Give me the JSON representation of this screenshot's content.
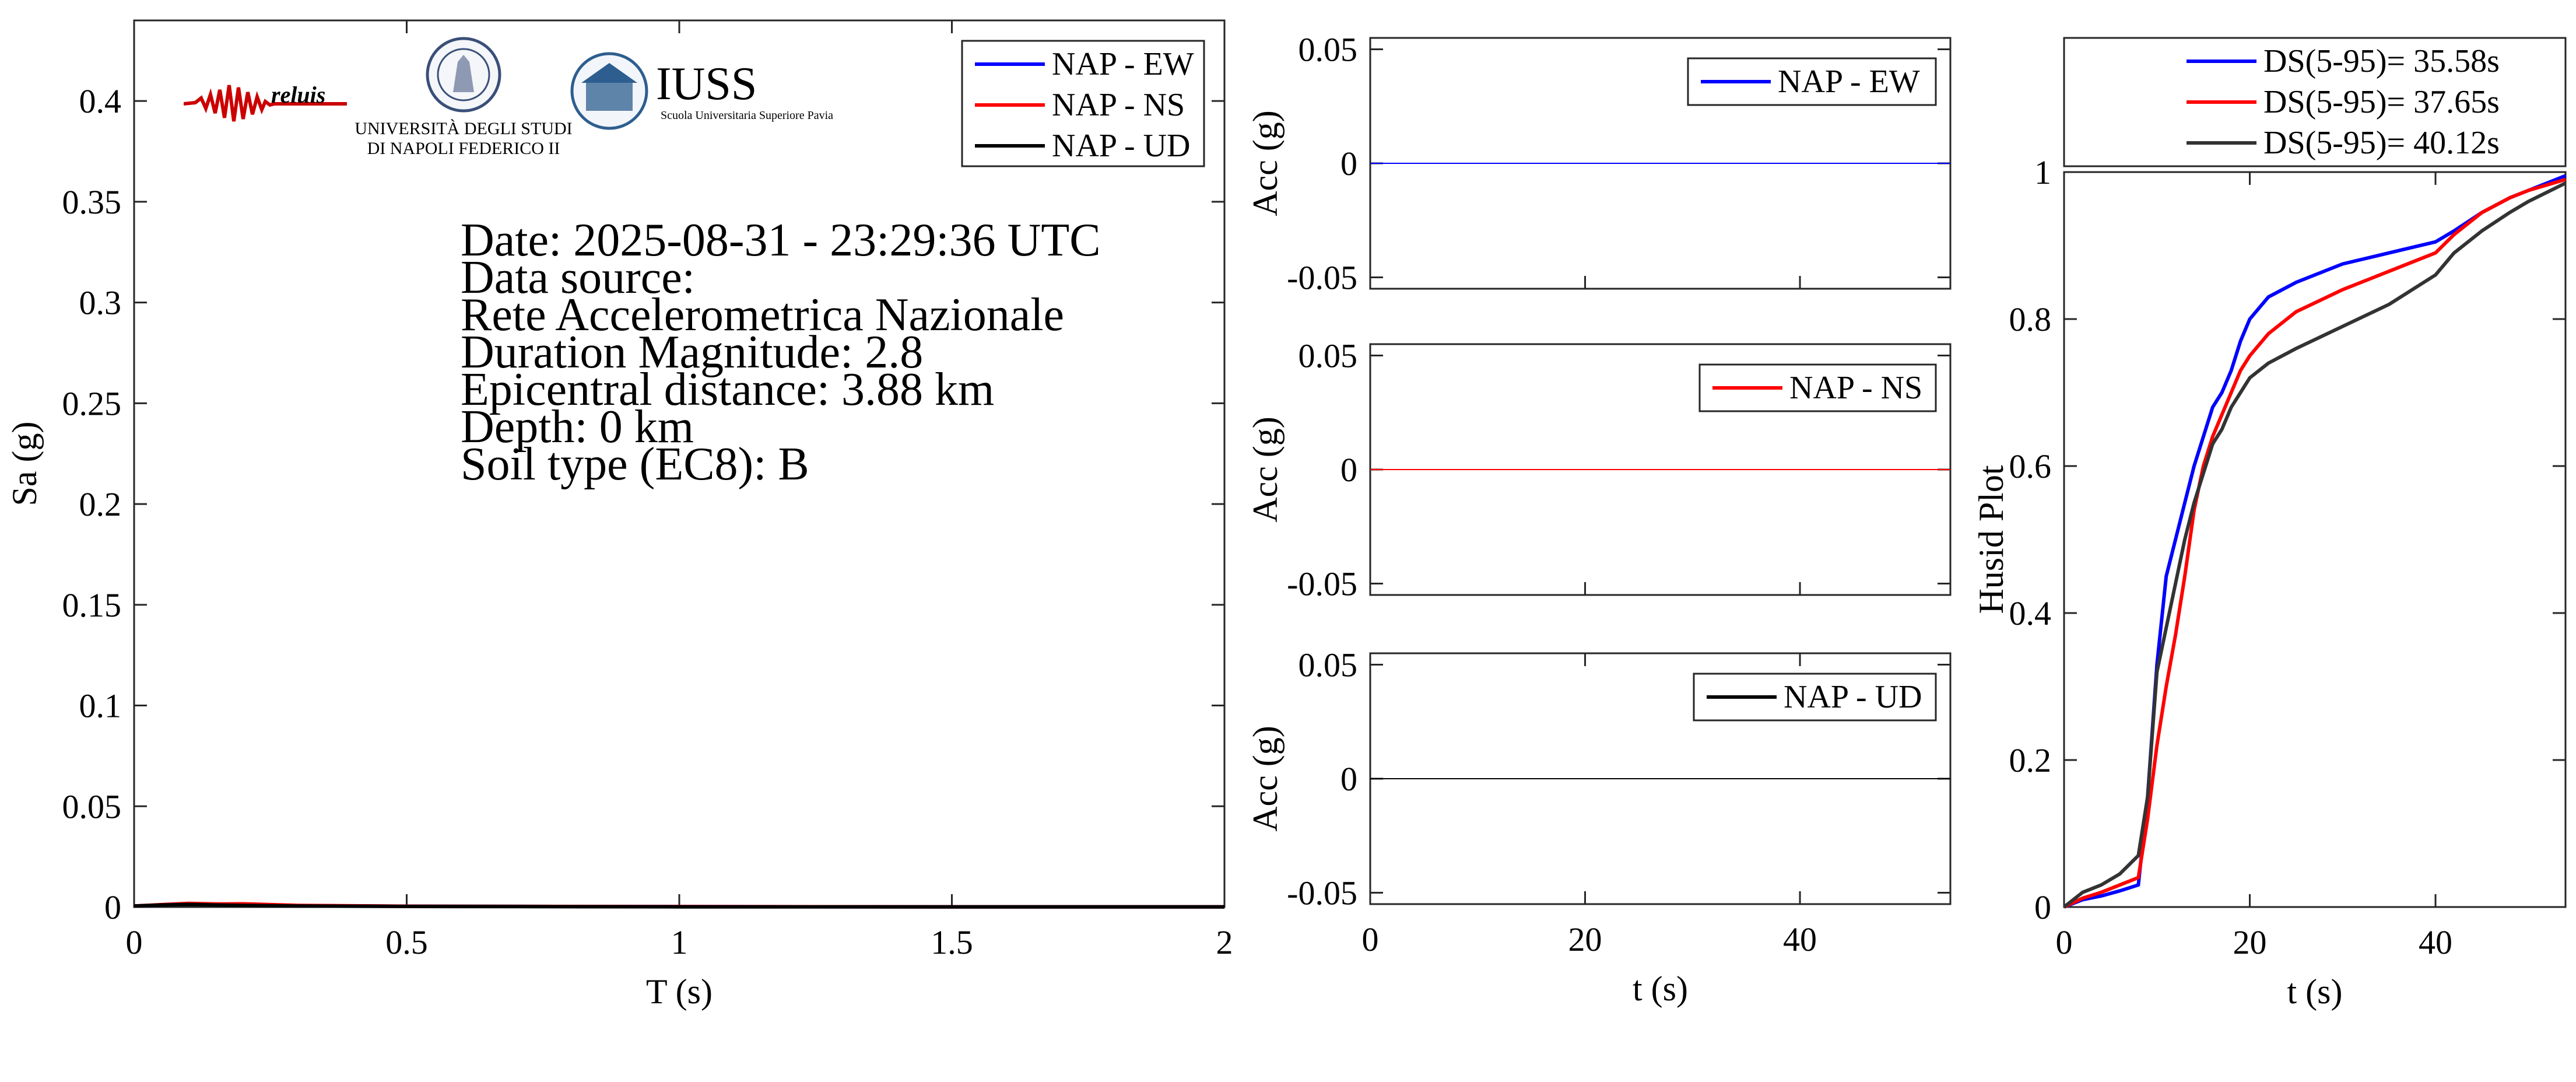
{
  "figure": {
    "info": {
      "date": "Date: 2025-08-31 - 23:29:36 UTC",
      "data_source_label": "Data source:",
      "data_source": "Rete Accelerometrica Nazionale",
      "magnitude": "Duration Magnitude: 2.8",
      "distance": "Epicentral distance: 3.88 km",
      "depth": "Depth: 0 km",
      "soil": "Soil type (EC8): B"
    },
    "logos": {
      "reluis": "reluis",
      "unina_line1": "UNIVERSITÀ DEGLI STUDI",
      "unina_line2": "DI NAPOLI FEDERICO II",
      "iuss_title": "IUSS",
      "iuss_subtitle": "Scuola Universitaria Superiore Pavia"
    },
    "colors": {
      "ew": "#0000ff",
      "ns": "#ff0000",
      "ud": "#000000",
      "ud_husid": "#333333"
    }
  },
  "chart_data": [
    {
      "type": "line",
      "id": "spectrum",
      "xlabel": "T (s)",
      "ylabel": "Sa (g)",
      "xlim": [
        0,
        2
      ],
      "ylim": [
        0,
        0.44
      ],
      "xticks": [
        0,
        0.5,
        1,
        1.5,
        2
      ],
      "xticklabels": [
        "0",
        "0.5",
        "1",
        "1.5",
        "2"
      ],
      "yticks": [
        0,
        0.05,
        0.1,
        0.15,
        0.2,
        0.25,
        0.3,
        0.35,
        0.4
      ],
      "yticklabels": [
        "0",
        "0.05",
        "0.1",
        "0.15",
        "0.2",
        "0.25",
        "0.3",
        "0.35",
        "0.4"
      ],
      "legend_position": "top-right",
      "series": [
        {
          "name": "NAP - EW",
          "color": "#0000ff",
          "x": [
            0,
            0.05,
            0.1,
            0.15,
            0.2,
            0.3,
            0.5,
            1.0,
            1.5,
            2.0
          ],
          "y": [
            0.0005,
            0.001,
            0.0015,
            0.0012,
            0.001,
            0.0007,
            0.0004,
            0.0002,
            0.0001,
            0.0001
          ]
        },
        {
          "name": "NAP - NS",
          "color": "#ff0000",
          "x": [
            0,
            0.05,
            0.1,
            0.15,
            0.2,
            0.3,
            0.5,
            1.0,
            1.5,
            2.0
          ],
          "y": [
            0.0005,
            0.0012,
            0.0018,
            0.0015,
            0.0016,
            0.0008,
            0.0004,
            0.0002,
            0.0001,
            0.0001
          ]
        },
        {
          "name": "NAP - UD",
          "color": "#000000",
          "x": [
            0,
            0.05,
            0.1,
            0.15,
            0.2,
            0.3,
            0.5,
            1.0,
            1.5,
            2.0
          ],
          "y": [
            0.0005,
            0.001,
            0.0013,
            0.001,
            0.0008,
            0.0005,
            0.0003,
            0.0001,
            0.0001,
            0.0001
          ]
        }
      ]
    },
    {
      "type": "line",
      "id": "acc-ew",
      "xlabel": "",
      "ylabel": "Acc (g)",
      "xlim": [
        0,
        54
      ],
      "ylim": [
        -0.055,
        0.055
      ],
      "yticks": [
        -0.05,
        0,
        0.05
      ],
      "yticklabels": [
        "-0.05",
        "0",
        "0.05"
      ],
      "legend_position": "top-right",
      "series": [
        {
          "name": "NAP - EW",
          "color": "#0000ff",
          "x": [
            0,
            54
          ],
          "y": [
            0,
            0
          ]
        }
      ]
    },
    {
      "type": "line",
      "id": "acc-ns",
      "xlabel": "",
      "ylabel": "Acc (g)",
      "xlim": [
        0,
        54
      ],
      "ylim": [
        -0.055,
        0.055
      ],
      "yticks": [
        -0.05,
        0,
        0.05
      ],
      "yticklabels": [
        "-0.05",
        "0",
        "0.05"
      ],
      "legend_position": "top-right",
      "series": [
        {
          "name": "NAP - NS",
          "color": "#ff0000",
          "x": [
            0,
            54
          ],
          "y": [
            0,
            0
          ]
        }
      ]
    },
    {
      "type": "line",
      "id": "acc-ud",
      "xlabel": "t (s)",
      "ylabel": "Acc (g)",
      "xlim": [
        0,
        54
      ],
      "ylim": [
        -0.055,
        0.055
      ],
      "xticks": [
        0,
        20,
        40
      ],
      "xticklabels": [
        "0",
        "20",
        "40"
      ],
      "yticks": [
        -0.05,
        0,
        0.05
      ],
      "yticklabels": [
        "-0.05",
        "0",
        "0.05"
      ],
      "legend_position": "top-right",
      "series": [
        {
          "name": "NAP - UD",
          "color": "#000000",
          "x": [
            0,
            54
          ],
          "y": [
            0,
            0
          ]
        }
      ]
    },
    {
      "type": "line",
      "id": "husid",
      "xlabel": "t (s)",
      "ylabel": "Husid Plot",
      "xlim": [
        0,
        54
      ],
      "ylim": [
        0,
        1
      ],
      "xticks": [
        0,
        20,
        40
      ],
      "xticklabels": [
        "0",
        "20",
        "40"
      ],
      "yticks": [
        0,
        0.2,
        0.4,
        0.6,
        0.8,
        1
      ],
      "yticklabels": [
        "0",
        "0.2",
        "0.4",
        "0.6",
        "0.8",
        "1"
      ],
      "legend_position": "above",
      "series": [
        {
          "name": "DS(5-95)= 35.58s",
          "color": "#0000ff",
          "x": [
            0,
            2,
            4,
            6,
            8,
            9,
            10,
            11,
            12,
            13,
            14,
            15,
            16,
            17,
            18,
            19,
            20,
            22,
            25,
            30,
            35,
            40,
            42,
            45,
            48,
            50,
            54
          ],
          "y": [
            0,
            0.01,
            0.015,
            0.022,
            0.03,
            0.15,
            0.33,
            0.45,
            0.5,
            0.55,
            0.6,
            0.64,
            0.68,
            0.7,
            0.73,
            0.77,
            0.8,
            0.83,
            0.85,
            0.875,
            0.89,
            0.905,
            0.92,
            0.945,
            0.965,
            0.975,
            0.995
          ]
        },
        {
          "name": "DS(5-95)= 37.65s",
          "color": "#ff0000",
          "x": [
            0,
            2,
            4,
            6,
            8,
            9,
            10,
            11,
            12,
            13,
            14,
            15,
            16,
            17,
            18,
            19,
            20,
            22,
            25,
            30,
            35,
            40,
            42,
            45,
            48,
            50,
            54
          ],
          "y": [
            0,
            0.012,
            0.02,
            0.03,
            0.04,
            0.12,
            0.22,
            0.3,
            0.37,
            0.45,
            0.54,
            0.6,
            0.64,
            0.67,
            0.7,
            0.73,
            0.75,
            0.78,
            0.81,
            0.84,
            0.865,
            0.89,
            0.915,
            0.945,
            0.965,
            0.975,
            0.99
          ]
        },
        {
          "name": "DS(5-95)= 40.12s",
          "color": "#333333",
          "x": [
            0,
            2,
            4,
            6,
            8,
            9,
            10,
            11,
            12,
            13,
            14,
            15,
            16,
            17,
            18,
            19,
            20,
            22,
            25,
            30,
            35,
            40,
            42,
            45,
            48,
            50,
            54
          ],
          "y": [
            0,
            0.02,
            0.03,
            0.045,
            0.07,
            0.15,
            0.32,
            0.38,
            0.44,
            0.5,
            0.55,
            0.59,
            0.63,
            0.65,
            0.68,
            0.7,
            0.72,
            0.74,
            0.76,
            0.79,
            0.82,
            0.86,
            0.89,
            0.92,
            0.945,
            0.96,
            0.985
          ]
        }
      ]
    }
  ]
}
